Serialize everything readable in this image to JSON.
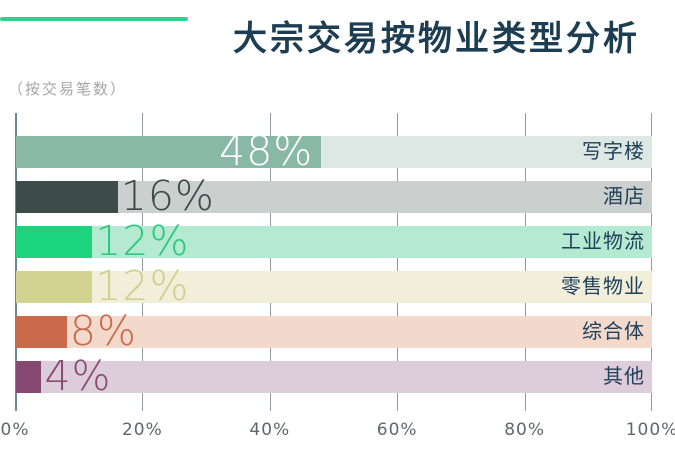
{
  "chart_data": {
    "type": "bar",
    "orientation": "horizontal",
    "title": "大宗交易按物业类型分析",
    "subtitle": "（按交易笔数）",
    "xlim": [
      0,
      100
    ],
    "x_ticks": [
      "0%",
      "20%",
      "40%",
      "60%",
      "80%",
      "100%"
    ],
    "x_tick_values": [
      0,
      20,
      40,
      60,
      80,
      100
    ],
    "grid": true,
    "legend": "none",
    "categories": [
      "写字楼",
      "酒店",
      "工业物流",
      "零售物业",
      "综合体",
      "其他"
    ],
    "values": [
      48,
      16,
      12,
      12,
      8,
      4
    ],
    "bars": [
      {
        "label": "写字楼",
        "value": 48,
        "value_label": "48%",
        "fill": "#89b8a7",
        "track": "#dde8e4",
        "value_color": "#ffffff",
        "label_inside": true
      },
      {
        "label": "酒店",
        "value": 16,
        "value_label": "16%",
        "fill": "#3d4b49",
        "track": "#cbd0cf",
        "value_color": "#3d4b49",
        "label_inside": false
      },
      {
        "label": "工业物流",
        "value": 12,
        "value_label": "12%",
        "fill": "#1bd47d",
        "track": "#b4ead2",
        "value_color": "#2ec97d",
        "label_inside": false
      },
      {
        "label": "零售物业",
        "value": 12,
        "value_label": "12%",
        "fill": "#d2d291",
        "track": "#f1eeda",
        "value_color": "#ced08e",
        "label_inside": false
      },
      {
        "label": "综合体",
        "value": 8,
        "value_label": "8%",
        "fill": "#c96a4b",
        "track": "#f3d9cc",
        "value_color": "#c96a4b",
        "label_inside": false
      },
      {
        "label": "其他",
        "value": 4,
        "value_label": "4%",
        "fill": "#854972",
        "track": "#ddccda",
        "value_color": "#8b4d76",
        "label_inside": false
      }
    ],
    "colors": {
      "accent_line": "#2ad489",
      "title": "#1d3d53",
      "category_label": "#21405a",
      "axis_line": "#6d8793",
      "gridline": "#939b9e",
      "axis_tick_label": "#61676d",
      "subtitle": "#a6a6a6",
      "background": "#ffffff"
    }
  }
}
